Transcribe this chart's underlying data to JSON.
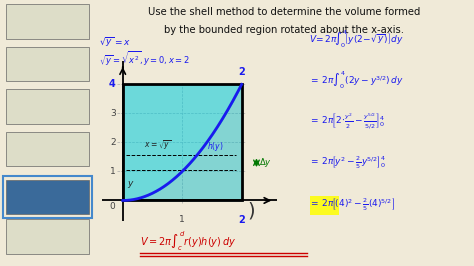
{
  "bg_color": "#f0ead8",
  "sidebar_dark": "#222222",
  "thumb_color": "#ddddc8",
  "thumb_highlight": "#3a6a9a",
  "thumb_border_highlight": "#4488cc",
  "title1": "Use the shell method to determine the volume formed",
  "title2": "by the bounded region rotated about the x-axis.",
  "eq_top1": "$\\sqrt{y} = x$",
  "eq_top2": "$\\sqrt{y} = \\sqrt{x^2}, y = 0, x = 2$",
  "rhs_texts": [
    "$V = 2\\pi\\int_0^4\\left[y(2-\\sqrt{y})\\right]dy$",
    "$= 2\\pi\\int_0^4(2y - y^{3/2})\\,dy$",
    "$= 2\\pi\\left[2\\cdot\\frac{y^2}{2} - \\frac{y^{5/2}}{5/2}\\right]_0^4$",
    "$= 2\\pi\\left[y^2 - \\frac{2}{5}y^{5/2}\\right]_0^4$",
    "$= 2\\pi\\left[(4)^2 - \\frac{2}{5}(4)^{5/2}\\right]$"
  ],
  "bottom_formula": "$V = 2\\pi\\int_c^d r(y)h(y)\\,dy$",
  "blue": "#1a1aee",
  "green": "#007700",
  "red": "#cc0000",
  "yellow": "#ffff00",
  "cyan1": "#00cccc",
  "cyan2": "#00bbcc"
}
